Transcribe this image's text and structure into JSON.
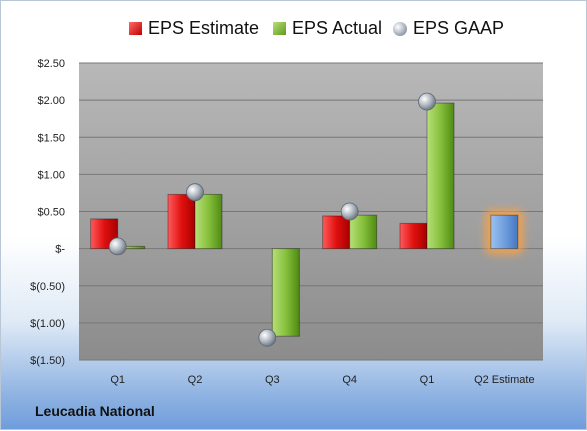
{
  "company": "Leucadia National",
  "legend": {
    "estimate_label": "EPS Estimate",
    "actual_label": "EPS Actual",
    "gaap_label": "EPS GAAP"
  },
  "colors": {
    "estimate": "#c00000",
    "actual": "#5f9a1c",
    "gaap": "#9aa4b0",
    "next_estimate": "#6f9fde",
    "next_estimate_glow": "#f5a24a",
    "plot_top": "#b3b3b3",
    "plot_bottom": "#8e8e8e"
  },
  "chart_data": {
    "type": "bar",
    "categories": [
      "Q1",
      "Q2",
      "Q3",
      "Q4",
      "Q1",
      "Q2 Estimate"
    ],
    "series": [
      {
        "name": "EPS Estimate",
        "values": [
          0.4,
          0.73,
          null,
          0.44,
          0.34,
          null
        ]
      },
      {
        "name": "EPS Actual",
        "values": [
          0.03,
          0.73,
          -1.18,
          0.45,
          1.96,
          null
        ]
      },
      {
        "name": "EPS GAAP",
        "type": "scatter",
        "values": [
          0.03,
          0.76,
          -1.2,
          0.5,
          1.98,
          null
        ]
      },
      {
        "name": "Q2 Estimate",
        "values": [
          null,
          null,
          null,
          null,
          null,
          0.45
        ]
      }
    ],
    "y_tick_values": [
      2.5,
      2.0,
      1.5,
      1.0,
      0.5,
      0,
      -0.5,
      -1.0,
      -1.5
    ],
    "y_tick_labels": [
      "$2.50",
      "$2.00",
      "$1.50",
      "$1.00",
      "$0.50",
      "$-",
      "$(0.50)",
      "$(1.00)",
      "$(1.50)"
    ],
    "ylim": [
      -1.5,
      2.5
    ],
    "grid": true,
    "legend_position": "top"
  }
}
